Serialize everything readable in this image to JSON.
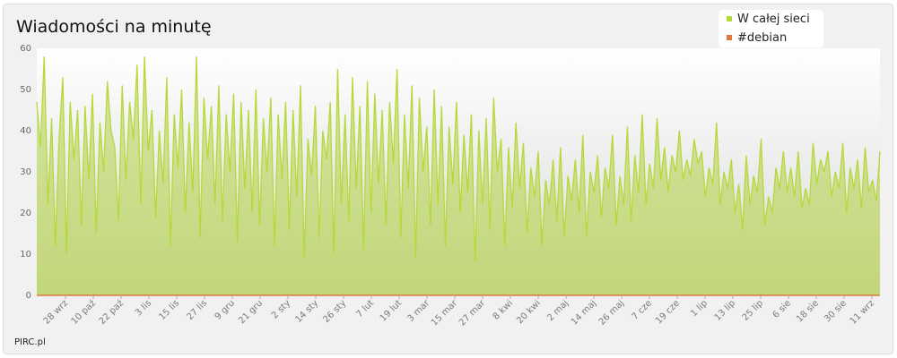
{
  "chart_data": {
    "type": "area",
    "title": "Wiadomości na minutę",
    "credit": "PIRC.pl",
    "xlabel": "",
    "ylabel": "",
    "ylim": [
      0,
      60
    ],
    "yticks": [
      0,
      10,
      20,
      30,
      40,
      50,
      60
    ],
    "x_tick_labels": [
      "28 wrz",
      "10 paź",
      "22 paź",
      "3 lis",
      "15 lis",
      "27 lis",
      "9 gru",
      "21 gru",
      "2 sty",
      "14 sty",
      "26 sty",
      "7 lut",
      "19 lut",
      "3 mar",
      "15 mar",
      "27 mar",
      "8 kwi",
      "20 kwi",
      "2 maj",
      "14 maj",
      "26 maj",
      "7 cze",
      "19 cze",
      "1 lip",
      "13 lip",
      "25 lip",
      "6 sie",
      "18 sie",
      "30 sie",
      "11 wrz"
    ],
    "legend_position": "top-right",
    "grid": false,
    "colors": {
      "network": "#b6d93a",
      "debian": "#e07a3a"
    },
    "series": [
      {
        "name": "W całej sieci",
        "color": "#b6d93a",
        "values": [
          47,
          36,
          58,
          22,
          43,
          12,
          38,
          53,
          10,
          47,
          33,
          45,
          17,
          46,
          28,
          49,
          15,
          42,
          30,
          52,
          40,
          36,
          18,
          51,
          28,
          47,
          38,
          56,
          22,
          58,
          35,
          45,
          19,
          40,
          27,
          53,
          12,
          44,
          31,
          50,
          20,
          42,
          25,
          58,
          14,
          48,
          33,
          46,
          22,
          51,
          18,
          44,
          30,
          49,
          13,
          47,
          26,
          45,
          20,
          50,
          17,
          43,
          30,
          48,
          12,
          44,
          28,
          47,
          16,
          45,
          24,
          51,
          9,
          38,
          29,
          46,
          14,
          40,
          33,
          47,
          10,
          55,
          22,
          44,
          18,
          53,
          26,
          46,
          11,
          52,
          20,
          49,
          27,
          45,
          17,
          47,
          32,
          55,
          14,
          44,
          26,
          51,
          9,
          48,
          30,
          41,
          17,
          50,
          22,
          46,
          12,
          41,
          27,
          47,
          20,
          39,
          25,
          44,
          8,
          40,
          22,
          43,
          16,
          48,
          30,
          38,
          12,
          36,
          21,
          42,
          26,
          37,
          15,
          31,
          24,
          35,
          12,
          28,
          22,
          33,
          18,
          36,
          14,
          29,
          23,
          33,
          20,
          39,
          14,
          30,
          25,
          34,
          19,
          31,
          26,
          39,
          17,
          29,
          22,
          41,
          18,
          34,
          25,
          44,
          22,
          32,
          26,
          43,
          28,
          36,
          25,
          34,
          30,
          40,
          28,
          33,
          29,
          38,
          32,
          35,
          24,
          31,
          27,
          42,
          22,
          30,
          26,
          33,
          20,
          27,
          16,
          34,
          22,
          29,
          25,
          38,
          17,
          24,
          20,
          31,
          26,
          35,
          25,
          31,
          24,
          35,
          21,
          26,
          22,
          37,
          27,
          33,
          30,
          35,
          24,
          30,
          26,
          37,
          20,
          31,
          26,
          33,
          21,
          36,
          25,
          28,
          23,
          35
        ]
      },
      {
        "name": "#debian",
        "color": "#e07a3a",
        "values": [
          0,
          0,
          0,
          0,
          0,
          0,
          0,
          0,
          0,
          0,
          0,
          0,
          0,
          0,
          0,
          0,
          0,
          0,
          0,
          0,
          0,
          0,
          0,
          0,
          0,
          0,
          0,
          0,
          0,
          0
        ]
      }
    ]
  }
}
